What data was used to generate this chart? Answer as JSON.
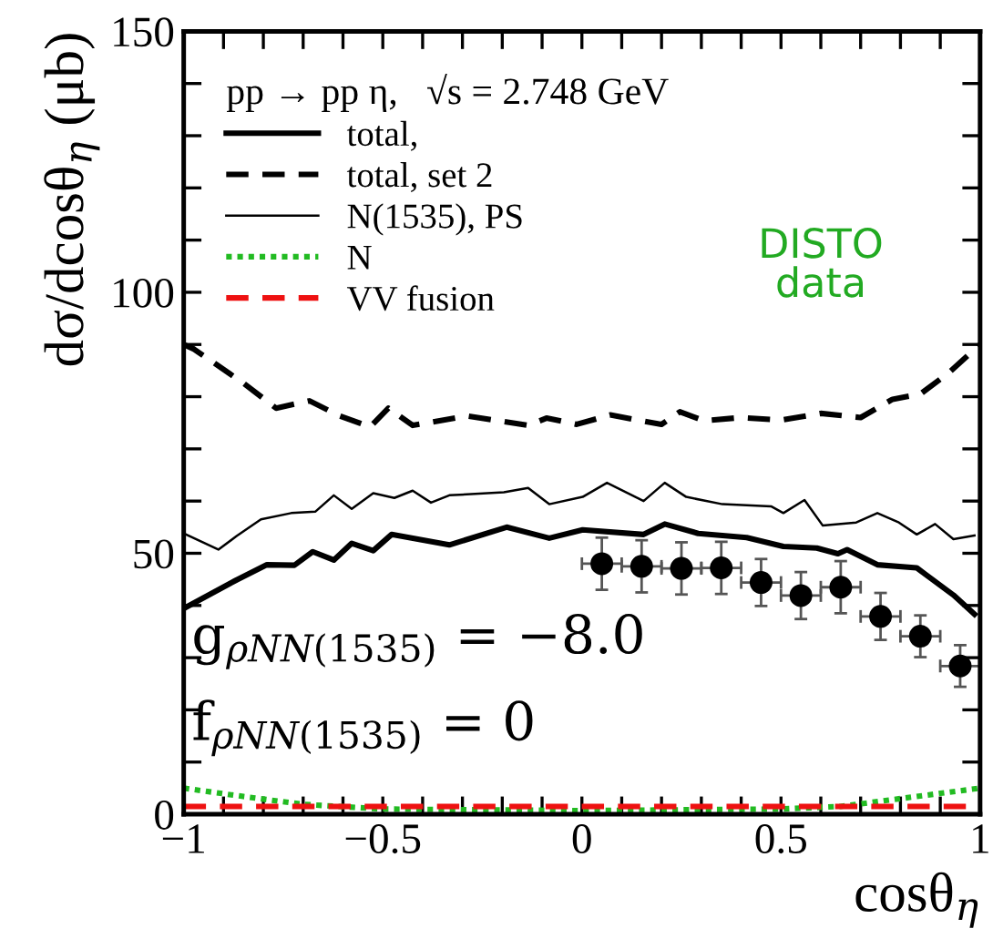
{
  "chart_data": {
    "type": "line",
    "xlabel": "cosθ$_{η}$",
    "ylabel": "dσ/dcosθ$_{η}$ (μb)",
    "legend_title": "pp → pp η,   √s = 2.748 GeV",
    "xlim": [
      -1,
      1
    ],
    "ylim": [
      0,
      150
    ],
    "xticks": [
      {
        "value": -1,
        "label": "−1"
      },
      {
        "value": -0.9,
        "label": null
      },
      {
        "value": -0.8,
        "label": null
      },
      {
        "value": -0.7,
        "label": null
      },
      {
        "value": -0.6,
        "label": null
      },
      {
        "value": -0.5,
        "label": "−0.5"
      },
      {
        "value": -0.4,
        "label": null
      },
      {
        "value": -0.3,
        "label": null
      },
      {
        "value": -0.2,
        "label": null
      },
      {
        "value": -0.1,
        "label": null
      },
      0,
      {
        "value": 0.1,
        "label": null
      },
      {
        "value": 0.2,
        "label": null
      },
      {
        "value": 0.3,
        "label": null
      },
      {
        "value": 0.4,
        "label": null
      },
      0.5,
      {
        "value": 0.6,
        "label": null
      },
      {
        "value": 0.7,
        "label": null
      },
      {
        "value": 0.8,
        "label": null
      },
      {
        "value": 0.9,
        "label": null
      },
      1
    ],
    "yticks": [
      0,
      {
        "value": 10,
        "label": null
      },
      {
        "value": 20,
        "label": null
      },
      {
        "value": 30,
        "label": null
      },
      {
        "value": 40,
        "label": null
      },
      50,
      {
        "value": 60,
        "label": null
      },
      {
        "value": 70,
        "label": null
      },
      {
        "value": 80,
        "label": null
      },
      {
        "value": 90,
        "label": null
      },
      100,
      {
        "value": 110,
        "label": null
      },
      {
        "value": 120,
        "label": null
      },
      {
        "value": 130,
        "label": null
      },
      {
        "value": 140,
        "label": null
      },
      150
    ],
    "grid": false,
    "legend": "top left",
    "marker": "none",
    "series": [
      {
        "name": "total,",
        "color": "#000000",
        "line_style": "solid",
        "x": [
          -1,
          -0.867,
          -0.791,
          -0.722,
          -0.676,
          -0.623,
          -0.578,
          -0.524,
          -0.478,
          -0.333,
          -0.189,
          -0.082,
          0.002,
          0.155,
          0.208,
          0.292,
          0.414,
          0.506,
          0.59,
          0.643,
          0.666,
          0.742,
          0.841,
          0.933,
          0.986
        ],
        "values": [
          39.4,
          44.9,
          47.8,
          47.7,
          50.3,
          48.7,
          51.9,
          50.5,
          53.6,
          51.6,
          55.0,
          52.9,
          54.5,
          53.6,
          55.6,
          53.8,
          53.0,
          51.3,
          51.0,
          49.9,
          50.7,
          47.8,
          47.2,
          42.0,
          38.3
        ]
      },
      {
        "name": "total, set 2",
        "color": "#000000",
        "line_style": "dashed",
        "x": [
          -1,
          -0.974,
          -0.852,
          -0.768,
          -0.684,
          -0.608,
          -0.532,
          -0.486,
          -0.425,
          -0.287,
          -0.135,
          -0.089,
          -0.013,
          0.071,
          0.2,
          0.246,
          0.307,
          0.4,
          0.5,
          0.6,
          0.7,
          0.78,
          0.85,
          0.92,
          1.0
        ],
        "values": [
          90,
          89.1,
          82.7,
          77.8,
          79.2,
          76.3,
          74.2,
          77.8,
          74.5,
          76.3,
          74.5,
          75.9,
          74.7,
          76.5,
          74.7,
          77.1,
          75.4,
          76.0,
          75.5,
          76.8,
          76.0,
          79.5,
          80.5,
          84.5,
          90
        ]
      },
      {
        "name": "N(1535), PS",
        "color": "#000000",
        "line_style": "solid",
        "x": [
          -1,
          -0.913,
          -0.867,
          -0.806,
          -0.73,
          -0.669,
          -0.623,
          -0.578,
          -0.524,
          -0.471,
          -0.425,
          -0.379,
          -0.333,
          -0.196,
          -0.135,
          -0.082,
          0.002,
          0.063,
          0.155,
          0.208,
          0.262,
          0.353,
          0.475,
          0.506,
          0.559,
          0.605,
          0.689,
          0.742,
          0.796,
          0.841,
          0.887,
          0.933,
          0.986
        ],
        "values": [
          53.8,
          50.7,
          53.3,
          56.5,
          57.7,
          58.0,
          61.1,
          58.5,
          61.5,
          60.6,
          62.0,
          59.7,
          61.1,
          61.7,
          62.5,
          59.4,
          60.8,
          63.5,
          60.0,
          63.5,
          60.8,
          59.4,
          59.0,
          57.7,
          60.2,
          55.3,
          55.9,
          57.7,
          55.9,
          53.6,
          55.6,
          52.7,
          53.4
        ]
      },
      {
        "name": "N",
        "color": "#22bb22",
        "line_style": "dotted",
        "x": [
          -1,
          -0.85,
          -0.7,
          -0.5,
          0,
          0.5,
          0.65,
          0.8,
          1
        ],
        "values": [
          5.0,
          3.4,
          1.9,
          1.0,
          0.7,
          1.0,
          1.5,
          3.0,
          5.0
        ]
      },
      {
        "name": "VV fusion",
        "color": "#ee1111",
        "line_style": "dashed",
        "x": [
          -1,
          1
        ],
        "values": [
          1.5,
          1.5
        ]
      },
      {
        "type": "scatter",
        "marker": "circle",
        "color": "#000000",
        "x": [
          0.05,
          0.15,
          0.25,
          0.35,
          0.45,
          0.55,
          0.65,
          0.75,
          0.85,
          0.95
        ],
        "values": [
          48.0,
          47.5,
          47.1,
          47.2,
          44.4,
          41.9,
          43.5,
          37.9,
          34.1,
          28.4
        ],
        "errors": [
          5,
          5,
          5,
          5,
          4.5,
          4.5,
          5,
          4.5,
          4,
          4
        ],
        "xerrors": [
          0.05,
          0.05,
          0.05,
          0.05,
          0.05,
          0.05,
          0.05,
          0.05,
          0.05,
          0.05
        ]
      }
    ],
    "annotations": [
      "DISTO\ndata",
      "g$_{ρNN(1535)}$ = −8.0",
      "f$_{ρNN(1535)}$ = 0"
    ]
  }
}
